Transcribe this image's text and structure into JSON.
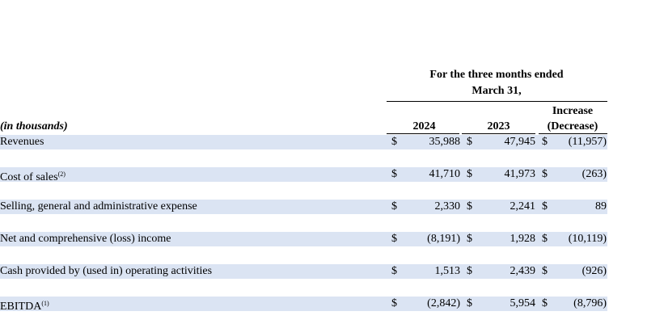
{
  "header": {
    "period_line1": "For the three months ended",
    "period_line2": "March 31,",
    "increase_line1": "Increase",
    "increase_line2": "(Decrease)",
    "units_label": "(in thousands)",
    "col_2024": "2024",
    "col_2023": "2023"
  },
  "rows": [
    {
      "label": "Revenues",
      "sup": "",
      "c1": "$",
      "v1": "35,988",
      "c2": "$",
      "v2": "47,945",
      "c3": "$",
      "v3": "(11,957)"
    },
    {
      "label": "Cost of sales",
      "sup": "(2)",
      "c1": "$",
      "v1": "41,710",
      "c2": "$",
      "v2": "41,973",
      "c3": "$",
      "v3": "(263)"
    },
    {
      "label": "Selling, general and administrative expense",
      "sup": "",
      "c1": "$",
      "v1": "2,330",
      "c2": "$",
      "v2": "2,241",
      "c3": "$",
      "v3": "89"
    },
    {
      "label": "Net and comprehensive (loss) income",
      "sup": "",
      "c1": "$",
      "v1": "(8,191)",
      "c2": "$",
      "v2": "1,928",
      "c3": "$",
      "v3": "(10,119)"
    },
    {
      "label": "Cash provided by (used in) operating activities",
      "sup": "",
      "c1": "$",
      "v1": "1,513",
      "c2": "$",
      "v2": "2,439",
      "c3": "$",
      "v3": "(926)"
    },
    {
      "label": "EBITDA",
      "sup": "(1)",
      "c1": "$",
      "v1": "(2,842)",
      "c2": "$",
      "v2": "5,954",
      "c3": "$",
      "v3": "(8,796)"
    }
  ]
}
